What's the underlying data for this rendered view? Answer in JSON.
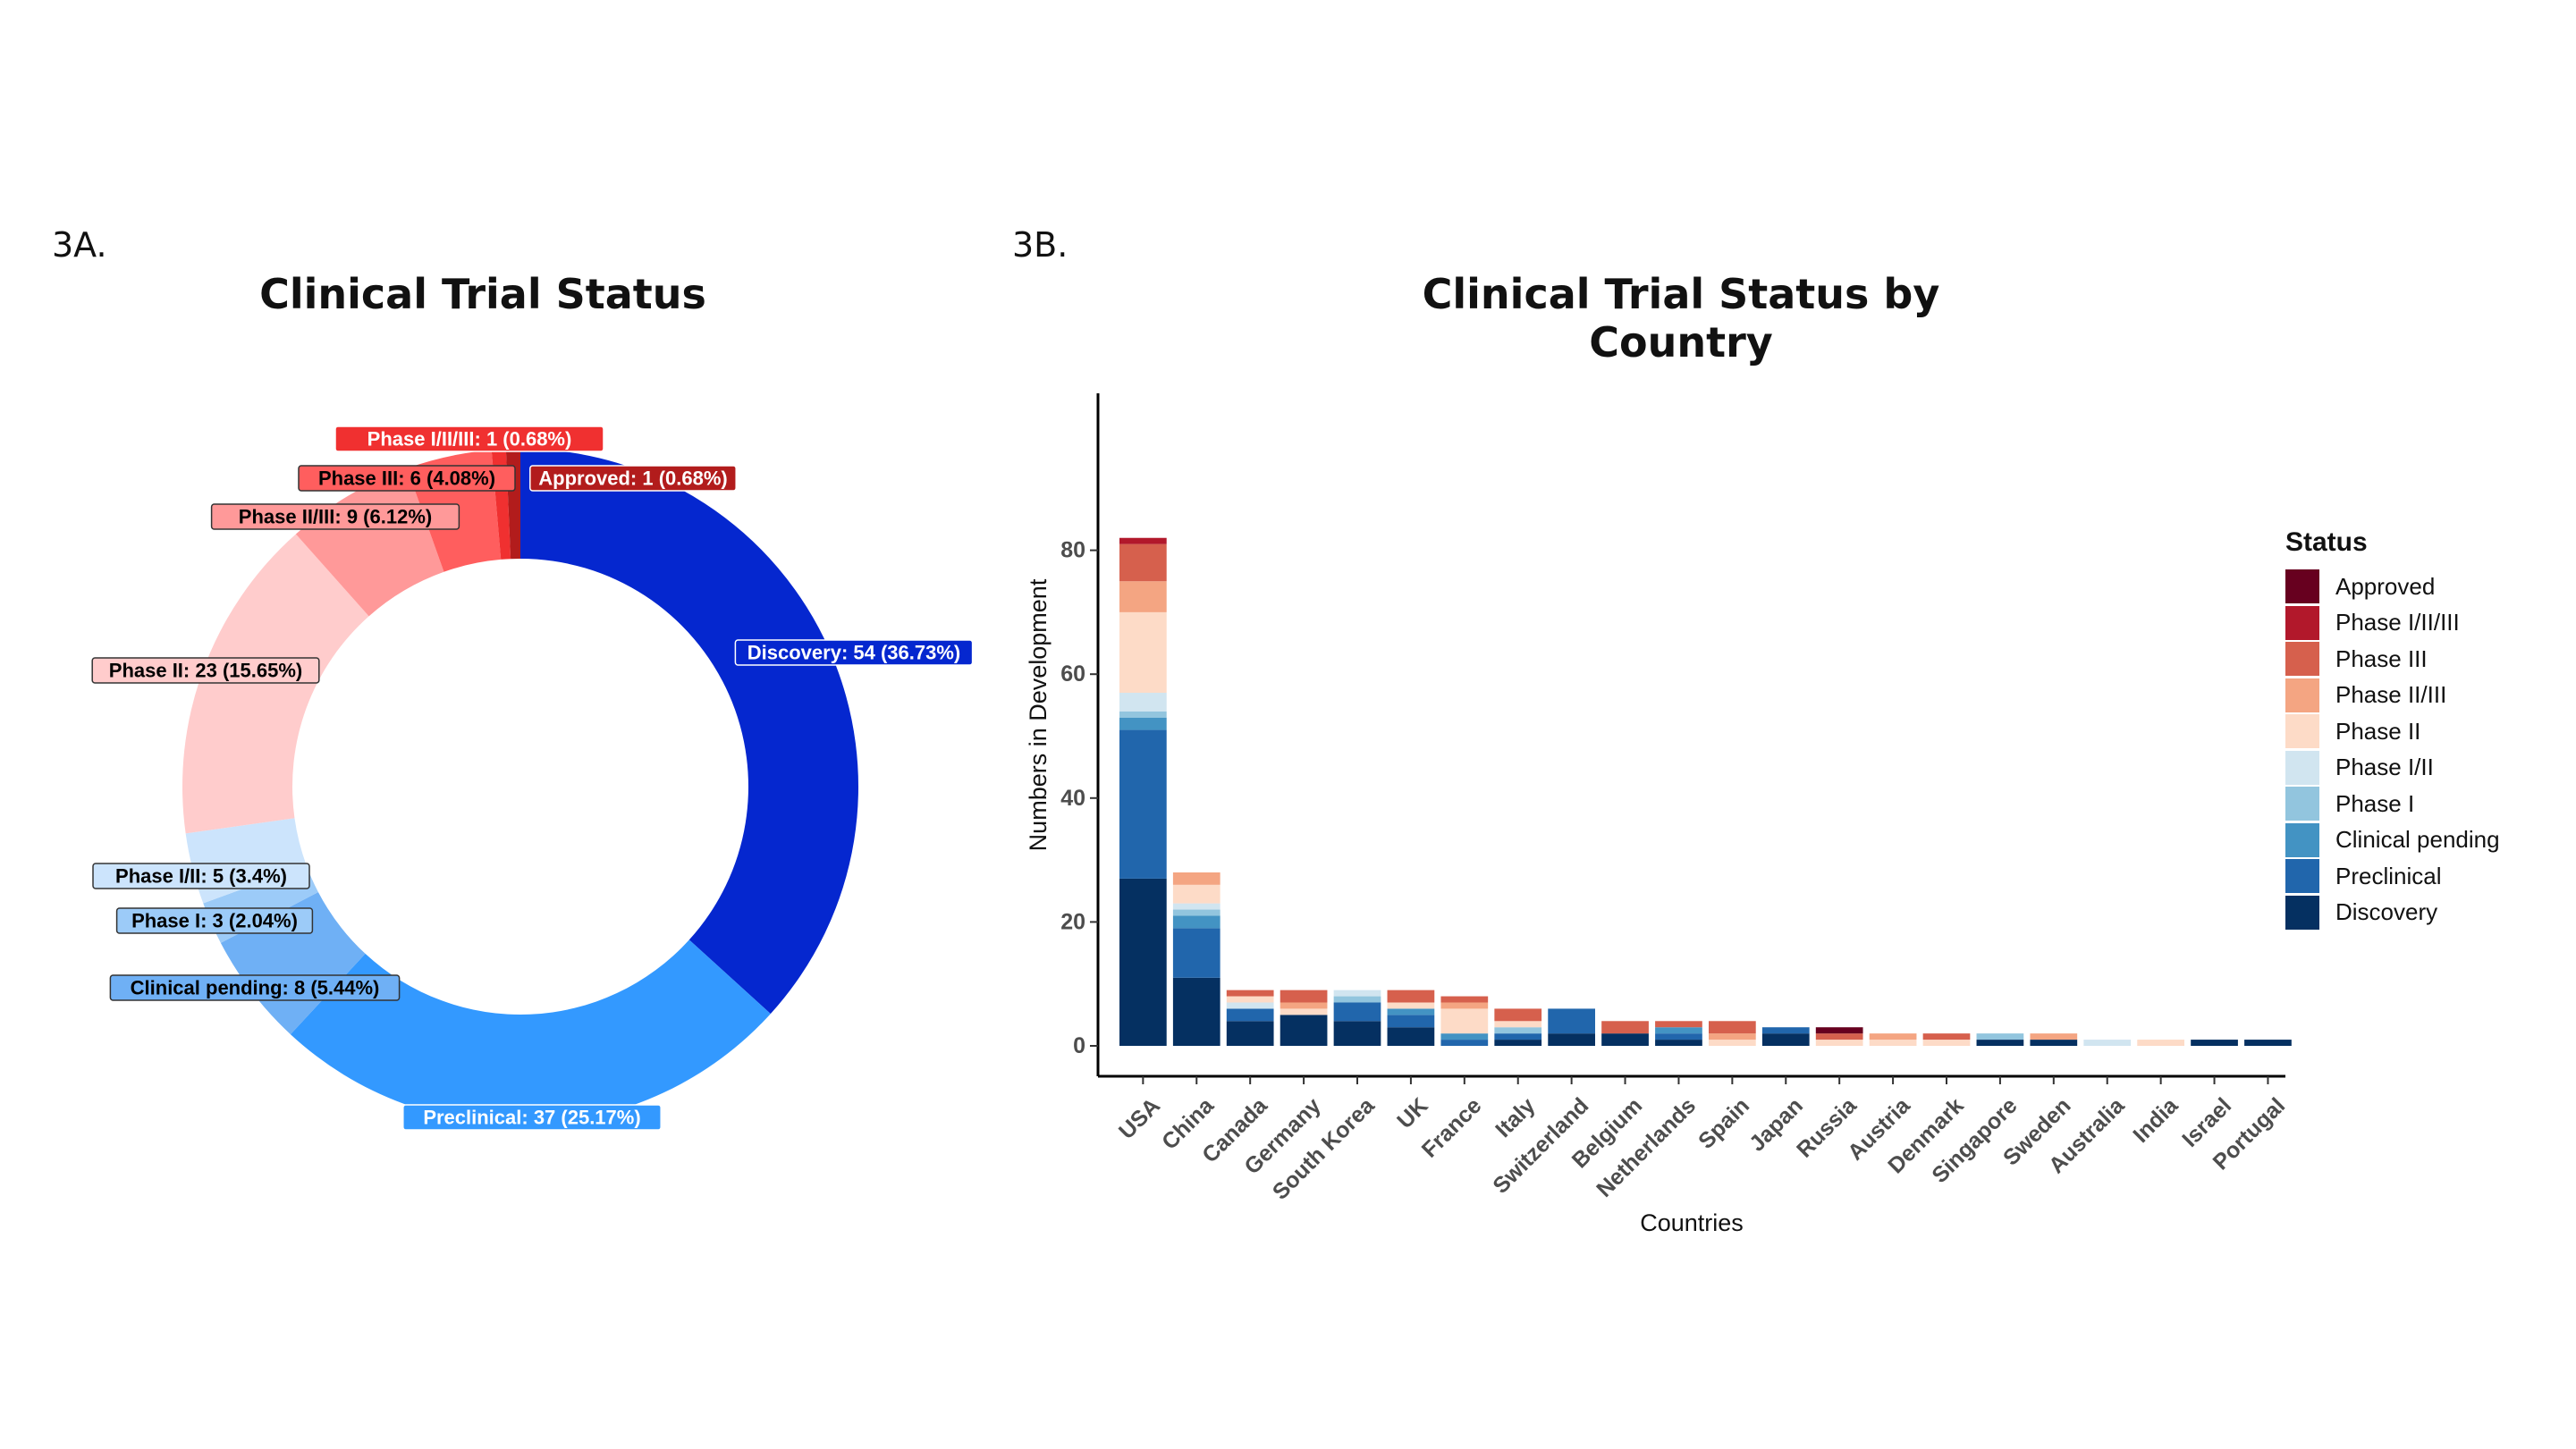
{
  "panel_a_label": "3A.",
  "panel_b_label": "3B.",
  "colors": {
    "Discovery": "#053061",
    "Preclinical": "#2166ac",
    "Clinical pending": "#4393c3",
    "Phase I": "#92c5de",
    "Phase I/II": "#d1e5f0",
    "Phase II": "#fddbc7",
    "Phase II/III": "#f4a582",
    "Phase III": "#d6604d",
    "Phase I/II/III": "#b2182b",
    "Approved": "#67001f"
  },
  "chart_data": [
    {
      "type": "pie",
      "title": "Clinical Trial Status",
      "style": "donut",
      "slices": [
        {
          "label": "Discovery: 54 (36.73%)",
          "category": "Discovery",
          "value": 54,
          "color": "#0527cf",
          "text_color": "#ffffff"
        },
        {
          "label": "Preclinical: 37 (25.17%)",
          "category": "Preclinical",
          "value": 37,
          "color": "#3399ff",
          "text_color": "#ffffff"
        },
        {
          "label": "Clinical pending: 8 (5.44%)",
          "category": "Clinical pending",
          "value": 8,
          "color": "#6fb0f5",
          "text_color": "#000000"
        },
        {
          "label": "Phase I: 3 (2.04%)",
          "category": "Phase I",
          "value": 3,
          "color": "#9ccbf8",
          "text_color": "#000000"
        },
        {
          "label": "Phase I/II: 5 (3.4%)",
          "category": "Phase I/II",
          "value": 5,
          "color": "#cce4fc",
          "text_color": "#000000"
        },
        {
          "label": "Phase II: 23 (15.65%)",
          "category": "Phase II",
          "value": 23,
          "color": "#ffcccc",
          "text_color": "#000000"
        },
        {
          "label": "Phase II/III: 9 (6.12%)",
          "category": "Phase II/III",
          "value": 9,
          "color": "#ff9999",
          "text_color": "#000000"
        },
        {
          "label": "Phase III: 6 (4.08%)",
          "category": "Phase III",
          "value": 6,
          "color": "#ff5e5e",
          "text_color": "#000000"
        },
        {
          "label": "Phase I/II/III: 1 (0.68%)",
          "category": "Phase I/II/III",
          "value": 1,
          "color": "#f03030",
          "text_color": "#ffffff"
        },
        {
          "label": "Approved: 1 (0.68%)",
          "category": "Approved",
          "value": 1,
          "color": "#b21c1c",
          "text_color": "#ffffff"
        }
      ]
    },
    {
      "type": "bar",
      "stacked": true,
      "title": "Clinical Trial Status by Country",
      "xlabel": "Countries",
      "ylabel": "Numbers in Development",
      "ylim": [
        0,
        84
      ],
      "yticks": [
        0,
        20,
        40,
        60,
        80
      ],
      "legend_title": "Status",
      "legend_position": "right",
      "categories": [
        "USA",
        "China",
        "Canada",
        "Germany",
        "South Korea",
        "UK",
        "France",
        "Italy",
        "Switzerland",
        "Belgium",
        "Netherlands",
        "Spain",
        "Japan",
        "Russia",
        "Austria",
        "Denmark",
        "Singapore",
        "Sweden",
        "Australia",
        "India",
        "Israel",
        "Portugal"
      ],
      "series": [
        {
          "name": "Discovery",
          "values": [
            27,
            11,
            4,
            5,
            4,
            3,
            0,
            1,
            2,
            2,
            1,
            0,
            2,
            0,
            0,
            0,
            1,
            1,
            0,
            0,
            1,
            1
          ]
        },
        {
          "name": "Preclinical",
          "values": [
            24,
            8,
            2,
            0,
            3,
            2,
            1,
            1,
            4,
            0,
            1,
            0,
            1,
            0,
            0,
            0,
            0,
            0,
            0,
            0,
            0,
            0
          ]
        },
        {
          "name": "Clinical pending",
          "values": [
            2,
            2,
            0,
            0,
            0,
            1,
            1,
            0,
            0,
            0,
            1,
            0,
            0,
            0,
            0,
            0,
            0,
            0,
            0,
            0,
            0,
            0
          ]
        },
        {
          "name": "Phase I",
          "values": [
            1,
            1,
            0,
            0,
            1,
            0,
            0,
            1,
            0,
            0,
            0,
            0,
            0,
            0,
            0,
            0,
            1,
            0,
            0,
            0,
            0,
            0
          ]
        },
        {
          "name": "Phase I/II",
          "values": [
            3,
            1,
            1,
            0,
            1,
            0,
            0,
            0,
            0,
            0,
            0,
            0,
            0,
            0,
            0,
            0,
            0,
            0,
            1,
            0,
            0,
            0
          ]
        },
        {
          "name": "Phase II",
          "values": [
            13,
            3,
            1,
            1,
            0,
            1,
            4,
            1,
            0,
            0,
            0,
            1,
            0,
            1,
            1,
            1,
            0,
            0,
            0,
            1,
            0,
            0
          ]
        },
        {
          "name": "Phase II/III",
          "values": [
            5,
            2,
            0,
            1,
            0,
            0,
            1,
            0,
            0,
            0,
            0,
            1,
            0,
            0,
            1,
            0,
            0,
            1,
            0,
            0,
            0,
            0
          ]
        },
        {
          "name": "Phase III",
          "values": [
            6,
            0,
            1,
            2,
            0,
            2,
            1,
            2,
            0,
            2,
            1,
            2,
            0,
            1,
            0,
            1,
            0,
            0,
            0,
            0,
            0,
            0
          ]
        },
        {
          "name": "Phase I/II/III",
          "values": [
            1,
            0,
            0,
            0,
            0,
            0,
            0,
            0,
            0,
            0,
            0,
            0,
            0,
            0,
            0,
            0,
            0,
            0,
            0,
            0,
            0,
            0
          ]
        },
        {
          "name": "Approved",
          "values": [
            0,
            0,
            0,
            0,
            0,
            0,
            0,
            0,
            0,
            0,
            0,
            0,
            0,
            1,
            0,
            0,
            0,
            0,
            0,
            0,
            0,
            0
          ]
        }
      ],
      "legend_order": [
        "Approved",
        "Phase I/II/III",
        "Phase III",
        "Phase II/III",
        "Phase II",
        "Phase I/II",
        "Phase I",
        "Clinical pending",
        "Preclinical",
        "Discovery"
      ]
    }
  ]
}
